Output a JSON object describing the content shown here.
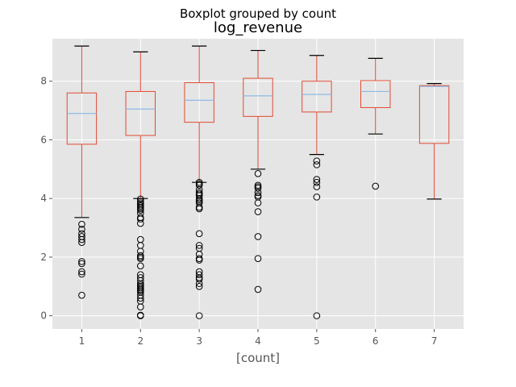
{
  "chart_data": {
    "type": "boxplot",
    "suptitle": "Boxplot grouped by count",
    "title": "log_revenue",
    "xlabel": "[count]",
    "ylabel": "",
    "categories": [
      "1",
      "2",
      "3",
      "4",
      "5",
      "6",
      "7"
    ],
    "ylim": [
      -0.45,
      9.45
    ],
    "yticks": [
      0,
      2,
      4,
      6,
      8
    ],
    "grid": true,
    "colors": {
      "background": "#E5E5E5",
      "grid": "#FFFFFF",
      "box": "#E24A33",
      "median": "#8EBAE5",
      "whisker": "#E24A33",
      "cap": "#000000",
      "flier": "#000000"
    },
    "boxes": [
      {
        "category": "1",
        "whislo": 3.35,
        "q1": 5.85,
        "median": 6.9,
        "q3": 7.6,
        "whishi": 9.2,
        "fliers": [
          3.12,
          2.95,
          2.8,
          2.7,
          2.6,
          2.5,
          1.85,
          1.78,
          1.5,
          1.42,
          0.7
        ]
      },
      {
        "category": "2",
        "whislo": 4.0,
        "q1": 6.15,
        "median": 7.05,
        "q3": 7.65,
        "whishi": 9.0,
        "fliers": [
          3.98,
          3.9,
          3.85,
          3.8,
          3.75,
          3.7,
          3.65,
          3.6,
          3.5,
          3.35,
          3.3,
          3.15,
          2.6,
          2.4,
          2.2,
          2.05,
          2.0,
          1.95,
          1.7,
          1.4,
          1.3,
          1.2,
          1.1,
          1.05,
          1.0,
          0.95,
          0.9,
          0.85,
          0.8,
          0.7,
          0.6,
          0.5,
          0.3,
          0.02,
          0.0
        ]
      },
      {
        "category": "3",
        "whislo": 4.55,
        "q1": 6.6,
        "median": 7.35,
        "q3": 7.95,
        "whishi": 9.2,
        "fliers": [
          4.55,
          4.5,
          4.45,
          4.3,
          4.2,
          4.15,
          4.1,
          4.0,
          3.95,
          3.9,
          3.85,
          3.7,
          3.65,
          2.8,
          2.4,
          2.3,
          2.1,
          1.95,
          1.9,
          1.5,
          1.4,
          1.3,
          1.25,
          1.1,
          1.0,
          0.0
        ]
      },
      {
        "category": "4",
        "whislo": 5.0,
        "q1": 6.8,
        "median": 7.5,
        "q3": 8.1,
        "whishi": 9.05,
        "fliers": [
          4.85,
          4.45,
          4.4,
          4.35,
          4.2,
          4.1,
          4.05,
          3.85,
          3.55,
          2.7,
          1.95,
          0.9
        ]
      },
      {
        "category": "5",
        "whislo": 5.5,
        "q1": 6.95,
        "median": 7.55,
        "q3": 8.0,
        "whishi": 8.88,
        "fliers": [
          5.28,
          5.15,
          4.65,
          4.55,
          4.4,
          4.05,
          0.0
        ]
      },
      {
        "category": "6",
        "whislo": 6.2,
        "q1": 7.1,
        "median": 7.65,
        "q3": 8.02,
        "whishi": 8.78,
        "fliers": [
          4.42
        ]
      },
      {
        "category": "7",
        "whislo": 3.98,
        "q1": 5.88,
        "median": 7.82,
        "q3": 7.85,
        "whishi": 7.92,
        "fliers": []
      }
    ]
  }
}
